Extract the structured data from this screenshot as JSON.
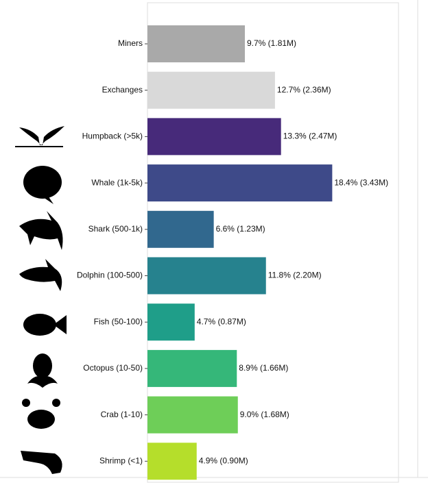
{
  "chart_data": {
    "type": "bar",
    "orientation": "horizontal",
    "categories": [
      "Miners",
      "Exchanges",
      "Humpback (>5k)",
      "Whale (1k-5k)",
      "Shark (500-1k)",
      "Dolphin (100-500)",
      "Fish (50-100)",
      "Octopus (10-50)",
      "Crab (1-10)",
      "Shrimp (<1)"
    ],
    "values": [
      9.7,
      12.7,
      13.3,
      18.4,
      6.6,
      11.8,
      4.7,
      8.9,
      9.0,
      4.9
    ],
    "value_labels": [
      "9.7% (1.81M)",
      "12.7% (2.36M)",
      "13.3% (2.47M)",
      "18.4% (3.43M)",
      "6.6% (1.23M)",
      "11.8% (2.20M)",
      "4.7% (0.87M)",
      "8.9% (1.66M)",
      "9.0% (1.68M)",
      "4.9% (0.90M)"
    ],
    "colors": [
      "#a9a9a9",
      "#d9d9d9",
      "#472a7a",
      "#3e4a89",
      "#31688e",
      "#26828e",
      "#1f9e89",
      "#35b779",
      "#6ece58",
      "#b5de2b"
    ],
    "xlim": [
      0,
      25
    ]
  }
}
